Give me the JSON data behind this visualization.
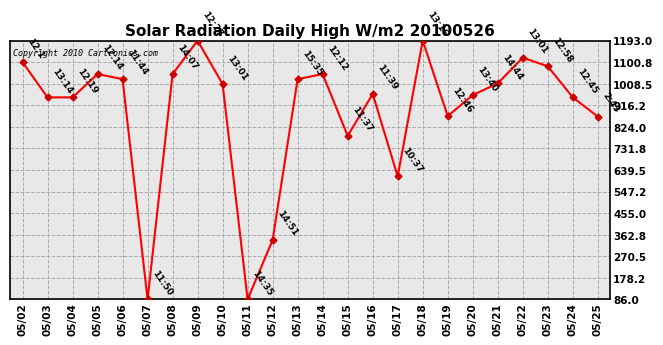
{
  "title": "Solar Radiation Daily High W/m2 20100526",
  "copyright": "Copyright 2010 Cartronics.com",
  "dates": [
    "05/02",
    "05/03",
    "05/04",
    "05/05",
    "05/06",
    "05/07",
    "05/08",
    "05/09",
    "05/10",
    "05/11",
    "05/12",
    "05/13",
    "05/14",
    "05/15",
    "05/16",
    "05/17",
    "05/18",
    "05/19",
    "05/20",
    "05/21",
    "05/22",
    "05/23",
    "05/24",
    "05/25"
  ],
  "values": [
    1101,
    950,
    950,
    1050,
    1028,
    86,
    1050,
    1193,
    1007,
    86,
    340,
    1028,
    1050,
    785,
    965,
    612,
    1193,
    870,
    960,
    1010,
    1120,
    1083,
    950,
    868
  ],
  "labels": [
    "12:1",
    "13:14",
    "12:19",
    "12:14",
    "11:44",
    "11:50",
    "14:07",
    "12:27",
    "13:01",
    "14:35",
    "14:51",
    "15:35",
    "12:12",
    "11:37",
    "11:39",
    "10:37",
    "13:16",
    "12:46",
    "13:40",
    "14:44",
    "13:01",
    "12:58",
    "12:45",
    "2:43"
  ],
  "yticks": [
    86.0,
    178.2,
    270.5,
    362.8,
    455.0,
    547.2,
    639.5,
    731.8,
    824.0,
    916.2,
    1008.5,
    1100.8,
    1193.0
  ],
  "line_color": "#ff0000",
  "marker_color": "#cc0000",
  "background_color": "#e8e8e8",
  "grid_color": "#aaaaaa",
  "title_fontsize": 11,
  "label_fontsize": 6.5,
  "tick_fontsize": 7.5
}
